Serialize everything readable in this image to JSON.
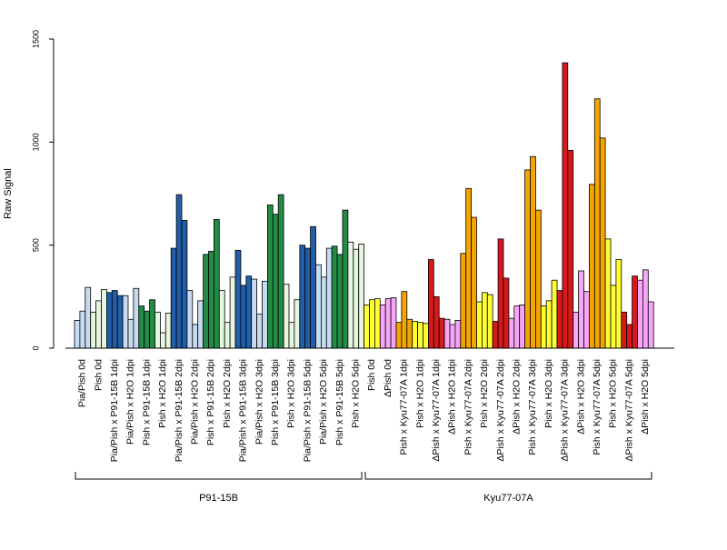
{
  "chart_data": {
    "type": "bar",
    "title": "",
    "xlabel": "",
    "ylabel": "Raw Signal",
    "ylim": [
      0,
      1500
    ],
    "yticks": [
      0,
      500,
      1000,
      1500
    ],
    "grid": false,
    "legend": "none",
    "colors": {
      "light_blue": "#c6dbef",
      "dark_blue": "#225ea8",
      "light_green": "#e5f5e0",
      "dark_green": "#238b45",
      "yellow": "#ffff33",
      "pink": "#f7a6f7",
      "orange": "#f5a500",
      "red": "#d7191c"
    },
    "categories": [
      {
        "label": "Pia/Pish 0d",
        "color": "light_blue",
        "values": [
          135,
          180,
          295
        ]
      },
      {
        "label": "Pish 0d",
        "color": "light_green",
        "values": [
          175,
          230,
          285
        ]
      },
      {
        "label": "Pia/Pish x P91-15B 1dpi",
        "color": "dark_blue",
        "values": [
          270,
          280,
          255
        ]
      },
      {
        "label": "Pia/Pish x H2O 1dpi",
        "color": "light_blue",
        "values": [
          255,
          140,
          290
        ]
      },
      {
        "label": "Pish x P91-15B 1dpi",
        "color": "dark_green",
        "values": [
          205,
          180,
          235
        ]
      },
      {
        "label": "Pish x H2O 1dpi",
        "color": "light_green",
        "values": [
          175,
          75,
          170
        ]
      },
      {
        "label": "Pia/Pish x P91-15B 2dpi",
        "color": "dark_blue",
        "values": [
          485,
          745,
          620
        ]
      },
      {
        "label": "Pia/Pish x H2O 2dpi",
        "color": "light_blue",
        "values": [
          280,
          115,
          230
        ]
      },
      {
        "label": "Pish x P91-15B 2dpi",
        "color": "dark_green",
        "values": [
          455,
          470,
          625
        ]
      },
      {
        "label": "Pish x H2O 2dpi",
        "color": "light_green",
        "values": [
          280,
          125,
          345
        ]
      },
      {
        "label": "Pia/Pish x P91-15B 3dpi",
        "color": "dark_blue",
        "values": [
          475,
          305,
          350
        ]
      },
      {
        "label": "Pia/Pish x H2O 3dpi",
        "color": "light_blue",
        "values": [
          335,
          165,
          325
        ]
      },
      {
        "label": "Pish x P91-15B 3dpi",
        "color": "dark_green",
        "values": [
          695,
          650,
          745
        ]
      },
      {
        "label": "Pish x H2O 3dpi",
        "color": "light_green",
        "values": [
          310,
          125,
          235
        ]
      },
      {
        "label": "Pia/Pish x P91-15B 5dpi",
        "color": "dark_blue",
        "values": [
          500,
          485,
          590
        ]
      },
      {
        "label": "Pia/Pish x H2O 5dpi",
        "color": "light_blue",
        "values": [
          405,
          345,
          485
        ]
      },
      {
        "label": "Pish x P91-15B 5dpi",
        "color": "dark_green",
        "values": [
          495,
          455,
          670
        ]
      },
      {
        "label": "Pish x H2O 5dpi",
        "color": "light_green",
        "values": [
          515,
          480,
          505
        ]
      },
      {
        "label": "Pish 0d",
        "color": "yellow",
        "values": [
          210,
          235,
          240
        ]
      },
      {
        "label": "ΔPish 0d",
        "color": "pink",
        "values": [
          210,
          240,
          245
        ]
      },
      {
        "label": "Pish x Kyu77-07A 1dpi",
        "color": "orange",
        "values": [
          125,
          275,
          140
        ]
      },
      {
        "label": "Pish x H2O 1dpi",
        "color": "yellow",
        "values": [
          130,
          125,
          120
        ]
      },
      {
        "label": "ΔPish x Kyu77-07A 1dpi",
        "color": "red",
        "values": [
          430,
          250,
          145
        ]
      },
      {
        "label": "ΔPish x H2O 1dpi",
        "color": "pink",
        "values": [
          140,
          115,
          135
        ]
      },
      {
        "label": "Pish x Kyu77-07A 2dpi",
        "color": "orange",
        "values": [
          460,
          775,
          635
        ]
      },
      {
        "label": "Pish x H2O 2dpi",
        "color": "yellow",
        "values": [
          225,
          270,
          260
        ]
      },
      {
        "label": "ΔPish x Kyu77-07A 2dpi",
        "color": "red",
        "values": [
          130,
          530,
          340
        ]
      },
      {
        "label": "ΔPish x H2O 2dpi",
        "color": "pink",
        "values": [
          145,
          205,
          210
        ]
      },
      {
        "label": "Pish x Kyu77-07A 3dpi",
        "color": "orange",
        "values": [
          865,
          930,
          670
        ]
      },
      {
        "label": "Pish x H2O 3dpi",
        "color": "yellow",
        "values": [
          205,
          230,
          330
        ]
      },
      {
        "label": "ΔPish x Kyu77-07A 3dpi",
        "color": "red",
        "values": [
          280,
          1385,
          960
        ]
      },
      {
        "label": "ΔPish x H2O 3dpi",
        "color": "pink",
        "values": [
          175,
          375,
          275
        ]
      },
      {
        "label": "Pish x Kyu77-07A 5dpi",
        "color": "orange",
        "values": [
          795,
          1210,
          1020
        ]
      },
      {
        "label": "Pish x H2O 5dpi",
        "color": "yellow",
        "values": [
          530,
          305,
          430
        ]
      },
      {
        "label": "ΔPish x Kyu77-07A 5dpi",
        "color": "red",
        "values": [
          175,
          115,
          350
        ]
      },
      {
        "label": "ΔPish x H2O 5dpi",
        "color": "pink",
        "values": [
          330,
          380,
          225
        ]
      }
    ],
    "groups": [
      {
        "label": "P91-15B",
        "from": 0,
        "to": 17
      },
      {
        "label": "Kyu77-07A",
        "from": 18,
        "to": 35
      }
    ]
  }
}
